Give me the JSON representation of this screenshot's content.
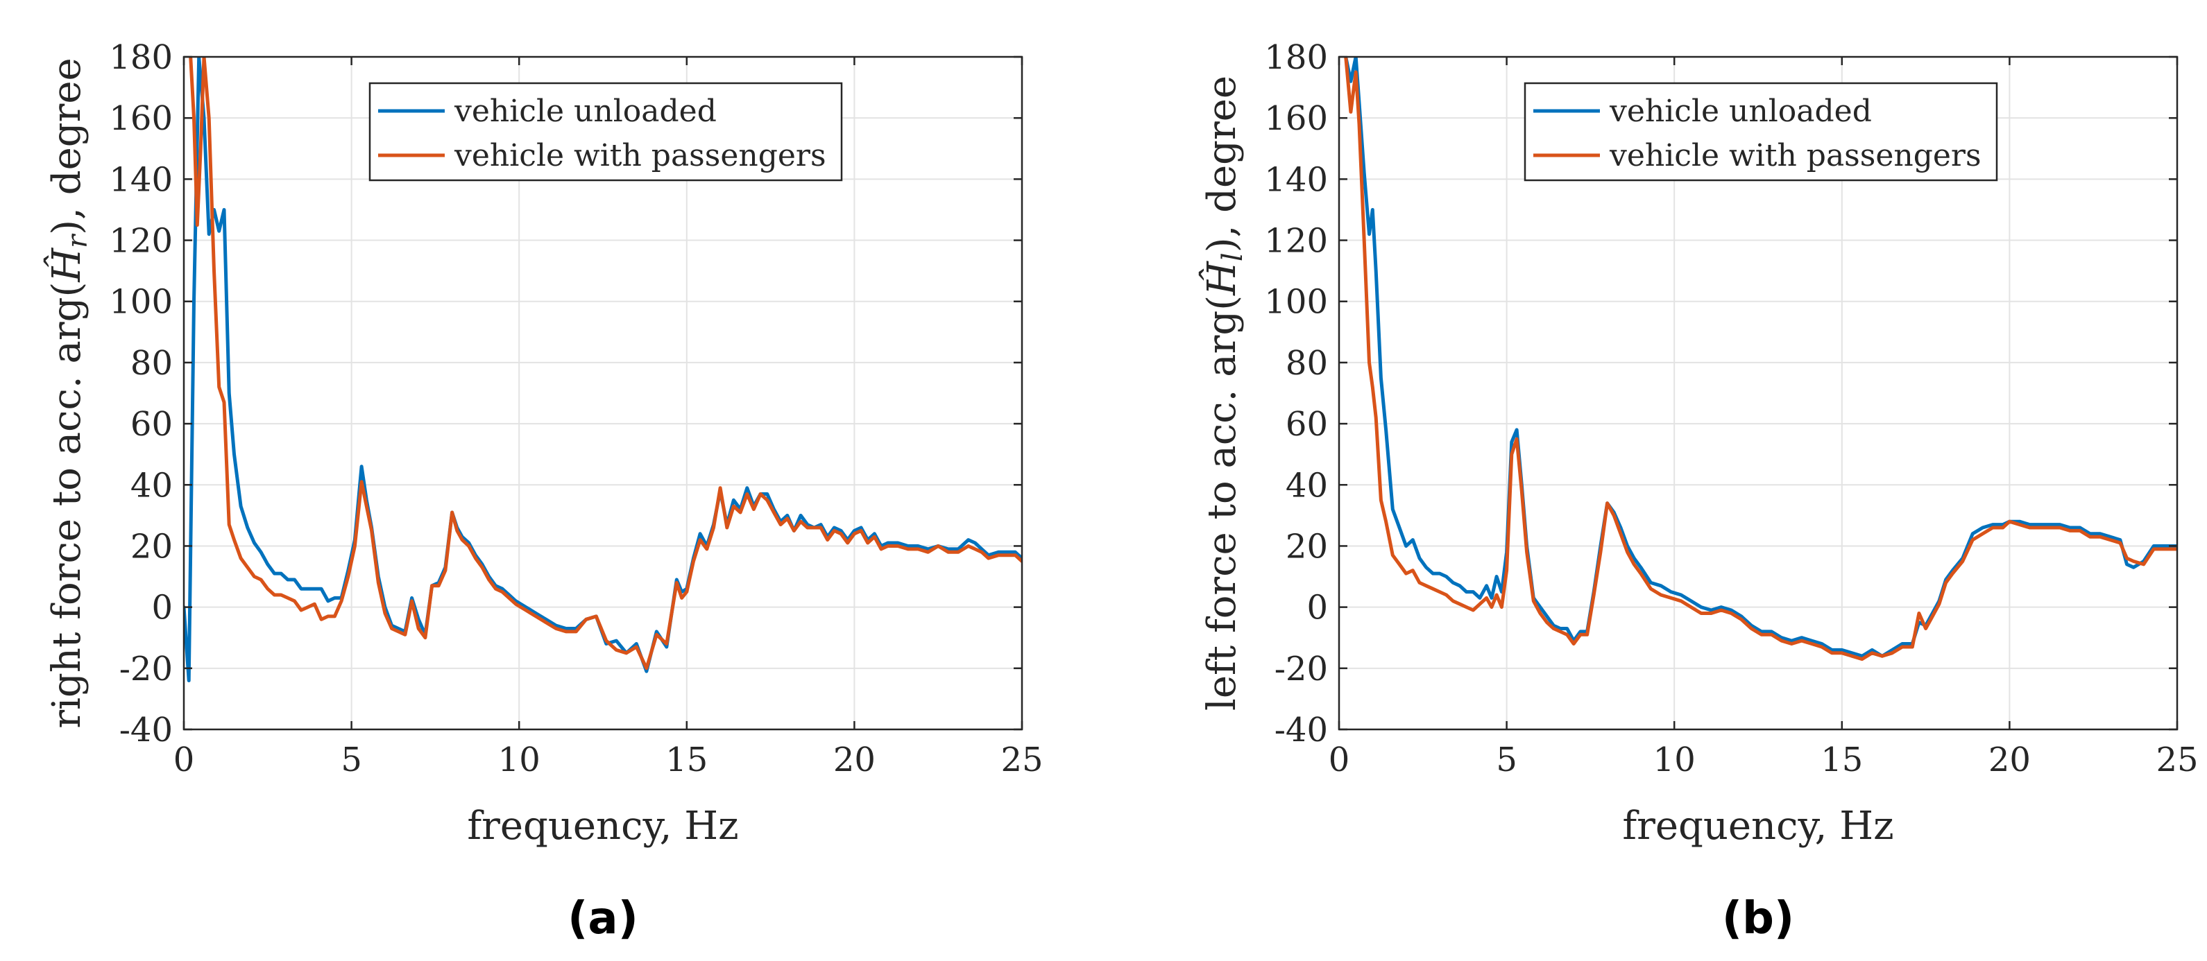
{
  "chart_data": [
    {
      "type": "line",
      "panel_label": "(a)",
      "xlabel": "frequency, Hz",
      "ylabel_prefix": "right force to acc. arg(",
      "ylabel_symbol": "Ĥ",
      "ylabel_sub": "r",
      "ylabel_suffix": "), degree",
      "xlim": [
        0,
        25
      ],
      "ylim": [
        -40,
        180
      ],
      "xticks": [
        0,
        5,
        10,
        15,
        20,
        25
      ],
      "yticks": [
        -40,
        -20,
        0,
        20,
        40,
        60,
        80,
        100,
        120,
        140,
        160,
        180
      ],
      "grid": true,
      "legend": "top-center",
      "series": [
        {
          "name": "vehicle unloaded",
          "color": "#0072BD",
          "x": [
            0,
            0.15,
            0.3,
            0.45,
            0.6,
            0.75,
            0.9,
            1.05,
            1.2,
            1.35,
            1.5,
            1.7,
            1.9,
            2.1,
            2.3,
            2.5,
            2.7,
            2.9,
            3.1,
            3.3,
            3.5,
            3.7,
            3.9,
            4.1,
            4.3,
            4.5,
            4.7,
            4.9,
            5.1,
            5.3,
            5.45,
            5.6,
            5.8,
            6.0,
            6.2,
            6.4,
            6.6,
            6.8,
            7.0,
            7.2,
            7.4,
            7.6,
            7.8,
            8.0,
            8.15,
            8.3,
            8.5,
            8.7,
            8.9,
            9.1,
            9.3,
            9.5,
            9.7,
            9.9,
            10.2,
            10.5,
            10.8,
            11.1,
            11.4,
            11.7,
            12.0,
            12.3,
            12.6,
            12.9,
            13.2,
            13.5,
            13.8,
            14.1,
            14.4,
            14.7,
            14.85,
            15.0,
            15.2,
            15.4,
            15.6,
            15.8,
            16.0,
            16.2,
            16.4,
            16.6,
            16.8,
            17.0,
            17.2,
            17.4,
            17.6,
            17.8,
            18.0,
            18.2,
            18.4,
            18.6,
            18.8,
            19.0,
            19.2,
            19.4,
            19.6,
            19.8,
            20.0,
            20.2,
            20.4,
            20.6,
            20.8,
            21.0,
            21.3,
            21.6,
            21.9,
            22.2,
            22.5,
            22.8,
            23.1,
            23.4,
            23.6,
            23.8,
            24.0,
            24.3,
            24.6,
            24.8,
            25.0
          ],
          "y": [
            0,
            -24,
            100,
            180,
            160,
            122,
            130,
            123,
            130,
            70,
            50,
            33,
            26,
            21,
            18,
            14,
            11,
            11,
            9,
            9,
            6,
            6,
            6,
            6,
            2,
            3,
            3,
            12,
            22,
            46,
            35,
            26,
            10,
            0,
            -6,
            -7,
            -8,
            3,
            -4,
            -9,
            7,
            8,
            13,
            31,
            26,
            23,
            21,
            17,
            14,
            10,
            7,
            6,
            4,
            2,
            0,
            -2,
            -4,
            -6,
            -7,
            -7,
            -4,
            -3,
            -12,
            -11,
            -15,
            -12,
            -21,
            -8,
            -13,
            9,
            5,
            6,
            16,
            24,
            20,
            27,
            38,
            27,
            35,
            32,
            39,
            33,
            37,
            37,
            32,
            28,
            30,
            25,
            30,
            27,
            26,
            27,
            23,
            26,
            25,
            22,
            25,
            26,
            22,
            24,
            20,
            21,
            21,
            20,
            20,
            19,
            20,
            19,
            19,
            22,
            21,
            19,
            17,
            18,
            18,
            18,
            16
          ]
        },
        {
          "name": "vehicle with passengers",
          "color": "#D95319",
          "x": [
            0.2,
            0.3,
            0.4,
            0.5,
            0.6,
            0.75,
            0.9,
            1.05,
            1.2,
            1.35,
            1.5,
            1.7,
            1.9,
            2.1,
            2.3,
            2.5,
            2.7,
            2.9,
            3.1,
            3.3,
            3.5,
            3.7,
            3.9,
            4.1,
            4.3,
            4.5,
            4.7,
            4.9,
            5.1,
            5.3,
            5.45,
            5.6,
            5.8,
            6.0,
            6.2,
            6.4,
            6.6,
            6.8,
            7.0,
            7.2,
            7.4,
            7.6,
            7.8,
            8.0,
            8.15,
            8.3,
            8.5,
            8.7,
            8.9,
            9.1,
            9.3,
            9.5,
            9.7,
            9.9,
            10.2,
            10.5,
            10.8,
            11.1,
            11.4,
            11.7,
            12.0,
            12.3,
            12.6,
            12.9,
            13.2,
            13.5,
            13.8,
            14.1,
            14.4,
            14.7,
            14.85,
            15.0,
            15.2,
            15.4,
            15.6,
            15.8,
            16.0,
            16.2,
            16.4,
            16.6,
            16.8,
            17.0,
            17.2,
            17.4,
            17.6,
            17.8,
            18.0,
            18.2,
            18.4,
            18.6,
            18.8,
            19.0,
            19.2,
            19.4,
            19.6,
            19.8,
            20.0,
            20.2,
            20.4,
            20.6,
            20.8,
            21.0,
            21.3,
            21.6,
            21.9,
            22.2,
            22.5,
            22.8,
            23.1,
            23.4,
            23.6,
            23.8,
            24.0,
            24.3,
            24.6,
            24.8,
            25.0
          ],
          "y": [
            180,
            160,
            125,
            150,
            180,
            160,
            110,
            72,
            67,
            27,
            22,
            16,
            13,
            10,
            9,
            6,
            4,
            4,
            3,
            2,
            -1,
            0,
            1,
            -4,
            -3,
            -3,
            2,
            10,
            20,
            41,
            33,
            25,
            8,
            -2,
            -7,
            -8,
            -9,
            2,
            -7,
            -10,
            7,
            7,
            12,
            31,
            25,
            22,
            20,
            16,
            13,
            9,
            6,
            5,
            3,
            1,
            -1,
            -3,
            -5,
            -7,
            -8,
            -8,
            -4,
            -3,
            -11,
            -14,
            -15,
            -13,
            -20,
            -9,
            -12,
            8,
            3,
            5,
            15,
            22,
            19,
            26,
            39,
            26,
            33,
            31,
            37,
            32,
            37,
            35,
            31,
            27,
            29,
            25,
            28,
            26,
            26,
            26,
            22,
            25,
            24,
            21,
            24,
            25,
            21,
            23,
            19,
            20,
            20,
            19,
            19,
            18,
            20,
            18,
            18,
            20,
            19,
            18,
            16,
            17,
            17,
            17,
            15
          ]
        }
      ]
    },
    {
      "type": "line",
      "panel_label": "(b)",
      "xlabel": "frequency, Hz",
      "ylabel_prefix": "left force to acc. arg(",
      "ylabel_symbol": "Ĥ",
      "ylabel_sub": "l",
      "ylabel_suffix": "), degree",
      "xlim": [
        0,
        25
      ],
      "ylim": [
        -40,
        180
      ],
      "xticks": [
        0,
        5,
        10,
        15,
        20,
        25
      ],
      "yticks": [
        -40,
        -20,
        0,
        20,
        40,
        60,
        80,
        100,
        120,
        140,
        160,
        180
      ],
      "grid": true,
      "legend": "top-center",
      "series": [
        {
          "name": "vehicle unloaded",
          "color": "#0072BD",
          "x": [
            0.2,
            0.35,
            0.5,
            0.6,
            0.75,
            0.9,
            1.0,
            1.1,
            1.25,
            1.4,
            1.6,
            1.8,
            2.0,
            2.2,
            2.4,
            2.6,
            2.8,
            3.0,
            3.2,
            3.4,
            3.6,
            3.8,
            4.0,
            4.2,
            4.4,
            4.55,
            4.7,
            4.85,
            5.0,
            5.15,
            5.3,
            5.45,
            5.6,
            5.8,
            6.0,
            6.2,
            6.4,
            6.6,
            6.8,
            7.0,
            7.2,
            7.4,
            7.6,
            7.8,
            8.0,
            8.2,
            8.4,
            8.6,
            8.8,
            9.0,
            9.3,
            9.6,
            9.9,
            10.2,
            10.5,
            10.8,
            11.1,
            11.4,
            11.7,
            12.0,
            12.3,
            12.6,
            12.9,
            13.2,
            13.5,
            13.8,
            14.1,
            14.4,
            14.7,
            15.0,
            15.3,
            15.6,
            15.9,
            16.2,
            16.5,
            16.8,
            17.1,
            17.3,
            17.5,
            17.7,
            17.9,
            18.1,
            18.3,
            18.6,
            18.9,
            19.2,
            19.5,
            19.8,
            20.0,
            20.3,
            20.6,
            20.9,
            21.2,
            21.5,
            21.8,
            22.1,
            22.4,
            22.7,
            23.0,
            23.3,
            23.5,
            23.7,
            24.0,
            24.3,
            24.6,
            25.0
          ],
          "y": [
            180,
            172,
            180,
            165,
            142,
            122,
            130,
            110,
            75,
            58,
            32,
            26,
            20,
            22,
            16,
            13,
            11,
            11,
            10,
            8,
            7,
            5,
            5,
            3,
            7,
            3,
            10,
            5,
            18,
            54,
            58,
            40,
            20,
            3,
            0,
            -3,
            -6,
            -7,
            -7,
            -11,
            -8,
            -8,
            5,
            20,
            34,
            31,
            26,
            20,
            16,
            13,
            8,
            7,
            5,
            4,
            2,
            0,
            -1,
            0,
            -1,
            -3,
            -6,
            -8,
            -8,
            -10,
            -11,
            -10,
            -11,
            -12,
            -14,
            -14,
            -15,
            -16,
            -14,
            -16,
            -14,
            -12,
            -12,
            -5,
            -6,
            -2,
            2,
            9,
            12,
            16,
            24,
            26,
            27,
            27,
            28,
            28,
            27,
            27,
            27,
            27,
            26,
            26,
            24,
            24,
            23,
            22,
            14,
            13,
            15,
            20,
            20,
            20
          ]
        },
        {
          "name": "vehicle with passengers",
          "color": "#D95319",
          "x": [
            0.2,
            0.35,
            0.5,
            0.6,
            0.75,
            0.9,
            1.0,
            1.1,
            1.25,
            1.4,
            1.6,
            1.8,
            2.0,
            2.2,
            2.4,
            2.6,
            2.8,
            3.0,
            3.2,
            3.4,
            3.6,
            3.8,
            4.0,
            4.2,
            4.4,
            4.55,
            4.7,
            4.85,
            5.0,
            5.15,
            5.3,
            5.45,
            5.6,
            5.8,
            6.0,
            6.2,
            6.4,
            6.6,
            6.8,
            7.0,
            7.2,
            7.4,
            7.6,
            7.8,
            8.0,
            8.2,
            8.4,
            8.6,
            8.8,
            9.0,
            9.3,
            9.6,
            9.9,
            10.2,
            10.5,
            10.8,
            11.1,
            11.4,
            11.7,
            12.0,
            12.3,
            12.6,
            12.9,
            13.2,
            13.5,
            13.8,
            14.1,
            14.4,
            14.7,
            15.0,
            15.3,
            15.6,
            15.9,
            16.2,
            16.5,
            16.8,
            17.1,
            17.3,
            17.5,
            17.7,
            17.9,
            18.1,
            18.3,
            18.6,
            18.9,
            19.2,
            19.5,
            19.8,
            20.0,
            20.3,
            20.6,
            20.9,
            21.2,
            21.5,
            21.8,
            22.1,
            22.4,
            22.7,
            23.0,
            23.3,
            23.5,
            23.7,
            24.0,
            24.3,
            24.6,
            25.0
          ],
          "y": [
            180,
            162,
            175,
            158,
            120,
            80,
            72,
            62,
            35,
            28,
            17,
            14,
            11,
            12,
            8,
            7,
            6,
            5,
            4,
            2,
            1,
            0,
            -1,
            1,
            3,
            0,
            4,
            0,
            12,
            50,
            55,
            38,
            18,
            2,
            -2,
            -5,
            -7,
            -8,
            -9,
            -12,
            -9,
            -9,
            4,
            18,
            34,
            30,
            24,
            18,
            14,
            11,
            6,
            4,
            3,
            2,
            0,
            -2,
            -2,
            -1,
            -2,
            -4,
            -7,
            -9,
            -9,
            -11,
            -12,
            -11,
            -12,
            -13,
            -15,
            -15,
            -16,
            -17,
            -15,
            -16,
            -15,
            -13,
            -13,
            -2,
            -7,
            -3,
            1,
            8,
            11,
            15,
            22,
            24,
            26,
            26,
            28,
            27,
            26,
            26,
            26,
            26,
            25,
            25,
            23,
            23,
            22,
            21,
            16,
            15,
            14,
            19,
            19,
            19
          ]
        }
      ]
    }
  ]
}
